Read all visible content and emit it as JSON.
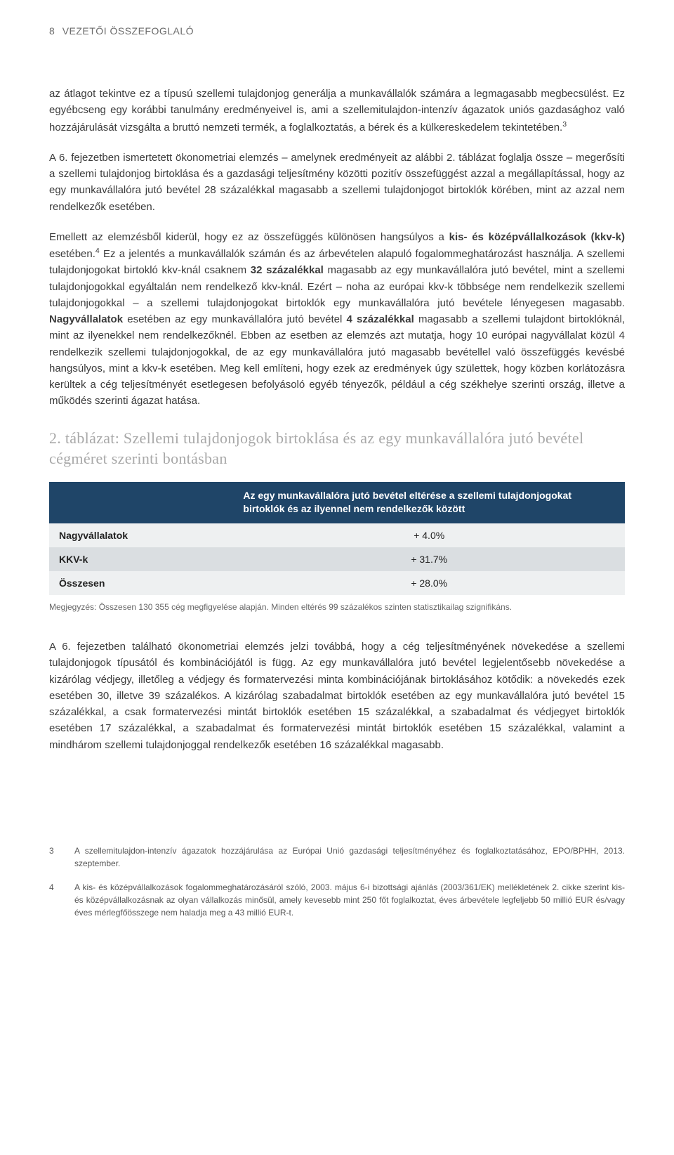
{
  "header": {
    "page_number": "8",
    "section": "VEZETŐI ÖSSZEFOGLALÓ"
  },
  "para1": "az átlagot tekintve ez a típusú szellemi tulajdonjog generálja a munkavállalók számára a legmagasabb megbecsülést. Ez egyébcseng egy korábbi tanulmány eredményeivel is, ami a szellemitulajdon-intenzív ágazatok uniós gazdasághoz való hozzájárulását vizsgálta a bruttó nemzeti termék, a foglalkoztatás, a bérek és a külkereskedelem tekintetében.",
  "para2_a": "A 6. fejezetben ismertetett ökonometriai elemzés – amelynek eredményeit az alábbi 2. táblázat foglalja össze – megerősíti a szellemi tulajdonjog birtoklása és a gazdasági teljesítmény közötti pozitív összefüggést azzal a megállapítással, hogy az egy munkavállalóra jutó bevétel 28 százalékkal magasabb a szellemi tulajdonjogot birtoklók körében, mint az azzal nem rendelkezők esetében.",
  "para3_a": "Emellett az elemzésből kiderül, hogy ez az összefüggés különösen hangsúlyos a ",
  "para3_b": "kis- és középvállalkozások (kkv-k)",
  "para3_c": " esetében.",
  "para3_d": " Ez a jelentés a munkavállalók számán és az árbevételen alapuló fogalommeghatározást használja. A szellemi tulajdonjogokat birtokló kkv-knál csaknem ",
  "para3_e": "32 százalékkal",
  "para3_f": " magasabb az egy munkavállalóra jutó bevétel, mint a szellemi tulajdonjogokkal egyáltalán nem rendelkező kkv-knál. Ezért – noha az európai kkv-k többsége nem rendelkezik szellemi tulajdonjogokkal – a szellemi tulajdonjogokat birtoklók egy munkavállalóra jutó bevétele lényegesen magasabb. ",
  "para3_g": "Nagyvállalatok",
  "para3_h": " esetében az egy munkavállalóra jutó bevétel ",
  "para3_i": "4 százalékkal",
  "para3_j": " magasabb a szellemi tulajdont birtoklóknál, mint az ilyenekkel nem rendelkezőknél. Ebben az esetben az elemzés azt mutatja, hogy 10 európai nagyvállalat közül 4 rendelkezik szellemi tulajdonjogokkal, de az egy munkavállalóra jutó magasabb bevétellel való összefüggés kevésbé hangsúlyos, mint a kkv-k esetében. Meg kell említeni, hogy ezek az eredmények úgy születtek, hogy közben korlátozásra kerültek a cég teljesítményét esetlegesen befolyásoló egyéb tényezők, például a cég székhelye szerinti ország, illetve a működés szerinti ágazat hatása.",
  "table": {
    "title": "2. táblázat: Szellemi tulajdonjogok birtoklása és az egy munkavállalóra jutó bevétel cégméret szerinti bontásban",
    "header_col2": "Az egy munkavállalóra jutó bevétel eltérése a szellemi tulajdonjogokat birtoklók és az ilyennel nem rendelkezők között",
    "rows": [
      {
        "label": "Nagyvállalatok",
        "value": "+ 4.0%"
      },
      {
        "label": "KKV-k",
        "value": "+ 31.7%"
      },
      {
        "label": "Összesen",
        "value": "+ 28.0%"
      }
    ],
    "note": "Megjegyzés: Összesen 130 355 cég megfigyelése alapján. Minden eltérés 99 százalékos szinten statisztikailag szignifikáns."
  },
  "para4": "A 6. fejezetben található ökonometriai elemzés jelzi továbbá, hogy a cég teljesítményének növekedése a szellemi tulajdonjogok típusától és kombinációjától is függ. Az egy munkavállalóra jutó bevétel legjelentősebb növekedése a kizárólag védjegy, illetőleg a védjegy és formatervezési minta kombinációjának birtoklásához kötődik: a növekedés ezek esetében 30, illetve 39 százalékos. A kizárólag szabadalmat birtoklók esetében az egy munkavállalóra jutó bevétel 15 százalékkal, a csak formatervezési mintát birtoklók esetében 15 százalékkal, a szabadalmat és védjegyet birtoklók esetében 17 százalékkal, a szabadalmat és formatervezési mintát birtoklók esetében 15 százalékkal, valamint a mindhárom szellemi tulajdonjoggal rendelkezők esetében 16 százalékkal magasabb.",
  "footnotes": [
    {
      "num": "3",
      "text": "A szellemitulajdon-intenzív ágazatok hozzájárulása az Európai Unió gazdasági teljesítményéhez és foglalkoztatásához, EPO/BPHH, 2013. szeptember."
    },
    {
      "num": "4",
      "text": "A kis- és középvállalkozások fogalommeghatározásáról szóló, 2003. május 6-i bizottsági ajánlás (2003/361/EK) mellékletének 2. cikke szerint kis- és középvállalkozásnak az olyan vállalkozás minősül, amely kevesebb mint 250 főt foglalkoztat, éves árbevétele legfeljebb 50 millió EUR és/vagy éves mérlegfőösszege nem haladja meg a 43 millió EUR-t."
    }
  ]
}
